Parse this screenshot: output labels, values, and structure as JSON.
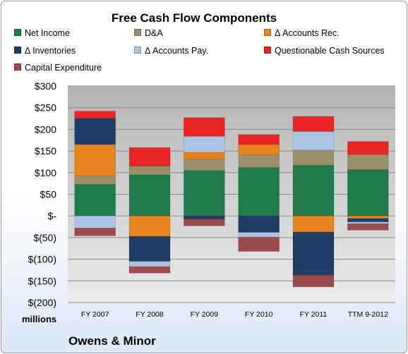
{
  "chart_data": {
    "type": "bar",
    "stacked": true,
    "title": "Free Cash Flow Components",
    "categories": [
      "FY 2007",
      "FY 2008",
      "FY 2009",
      "FY 2010",
      "FY 2011",
      "TTM 9-2012"
    ],
    "ylim": [
      -200,
      300
    ],
    "yticks": [
      300,
      250,
      200,
      150,
      100,
      50,
      0,
      -50,
      -100,
      -150,
      -200
    ],
    "ytick_labels": [
      "$300",
      "$250",
      "$200",
      "$150",
      "$100",
      "$50",
      "$-",
      "$(50)",
      "$(100)",
      "$(150)",
      "$(200)"
    ],
    "units_label": "millions",
    "grid": true,
    "legend_position": "top",
    "series": [
      {
        "name": "Net Income",
        "color": "#217a4a",
        "values": [
          73,
          95,
          105,
          112,
          117,
          107
        ]
      },
      {
        "name": "D&A",
        "color": "#9b8f6a",
        "values": [
          20,
          20,
          27,
          30,
          35,
          35
        ]
      },
      {
        "name": "Δ Accounts Rec.",
        "color": "#e8841f",
        "values": [
          72,
          -47,
          15,
          23,
          -37,
          -6
        ]
      },
      {
        "name": "Δ Inventories",
        "color": "#1f3c65",
        "values": [
          60,
          -58,
          -7,
          -38,
          -100,
          -8
        ]
      },
      {
        "name": "Δ Accounts Pay.",
        "color": "#a9c4e4",
        "values": [
          -28,
          -12,
          37,
          -11,
          43,
          -4
        ]
      },
      {
        "name": "Questionable Cash Sources",
        "color": "#e82424",
        "values": [
          17,
          43,
          43,
          23,
          35,
          30
        ]
      },
      {
        "name": "Capital Expenditure",
        "color": "#9b4b4b",
        "values": [
          -18,
          -15,
          -16,
          -33,
          -27,
          -15
        ]
      }
    ]
  },
  "company": "Owens & Minor"
}
